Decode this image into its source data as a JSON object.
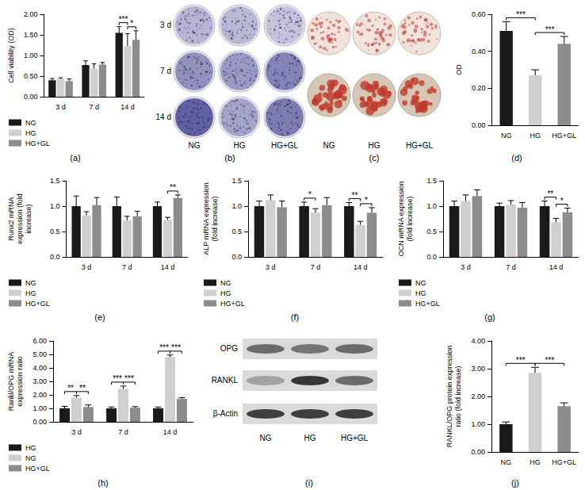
{
  "chart_data": [
    {
      "panel_label": "(a)",
      "type": "bar",
      "ylabel": "Cell viability (OD)",
      "categories": [
        "3 d",
        "7 d",
        "14 d"
      ],
      "series": [
        {
          "name": "NG",
          "color": "#1a1a1a",
          "values": [
            0.4,
            0.77,
            1.55
          ],
          "errors": [
            0.04,
            0.1,
            0.15
          ]
        },
        {
          "name": "HG",
          "color": "#cfcfcf",
          "values": [
            0.43,
            0.68,
            1.23
          ],
          "errors": [
            0.03,
            0.12,
            0.3
          ]
        },
        {
          "name": "HG+GL",
          "color": "#8c8c8c",
          "values": [
            0.38,
            0.78,
            1.38
          ],
          "errors": [
            0.05,
            0.05,
            0.22
          ]
        }
      ],
      "ylim": [
        0,
        2
      ],
      "yticks": [
        {
          "value": 0,
          "label": "0.00"
        },
        {
          "value": 0.5,
          "label": "0.50"
        },
        {
          "value": 1,
          "label": "1.00"
        },
        {
          "value": 1.5,
          "label": "1.50"
        },
        {
          "value": 2,
          "label": "2.00"
        }
      ],
      "grid": false,
      "legend": "bottom-left",
      "significance": [
        {
          "category": "14 d",
          "from": "NG",
          "to": "HG",
          "label": "***"
        },
        {
          "category": "14 d",
          "from": "HG",
          "to": "HG+GL",
          "label": "*"
        }
      ]
    },
    {
      "panel_label": "(d)",
      "type": "bar",
      "ylabel": "OD",
      "categories": [
        "NG",
        "HG",
        "HG+GL"
      ],
      "values": [
        0.51,
        0.27,
        0.44
      ],
      "errors": [
        0.05,
        0.03,
        0.04
      ],
      "colors": [
        "#1a1a1a",
        "#cfcfcf",
        "#8c8c8c"
      ],
      "ylim": [
        0,
        0.6
      ],
      "yticks": [
        {
          "value": 0,
          "label": "0.00"
        },
        {
          "value": 0.2,
          "label": "0.20"
        },
        {
          "value": 0.4,
          "label": "0.40"
        },
        {
          "value": 0.6,
          "label": "0.60"
        }
      ],
      "grid": false,
      "significance": [
        {
          "from": "NG",
          "to": "HG",
          "label": "***"
        },
        {
          "from": "HG",
          "to": "HG+GL",
          "label": "***"
        }
      ]
    },
    {
      "panel_label": "(e)",
      "type": "bar",
      "ylabel": "Runx2 mRNA expression (fold increase)",
      "categories": [
        "3 d",
        "7 d",
        "14 d"
      ],
      "series": [
        {
          "name": "NG",
          "color": "#1a1a1a",
          "values": [
            1.0,
            1.0,
            1.0
          ],
          "errors": [
            0.2,
            0.18,
            0.08
          ]
        },
        {
          "name": "HG",
          "color": "#cfcfcf",
          "values": [
            0.82,
            0.72,
            0.73
          ],
          "errors": [
            0.07,
            0.08,
            0.05
          ]
        },
        {
          "name": "HG+GL",
          "color": "#8c8c8c",
          "values": [
            1.02,
            0.8,
            1.16
          ],
          "errors": [
            0.15,
            0.1,
            0.06
          ]
        }
      ],
      "ylim": [
        0,
        1.5
      ],
      "yticks": [
        {
          "value": 0,
          "label": "0.0"
        },
        0.5,
        {
          "value": 1,
          "label": "1.0"
        },
        1.5
      ],
      "grid": false,
      "legend": "bottom-left",
      "significance": [
        {
          "category": "14 d",
          "from": "HG",
          "to": "HG+GL",
          "label": "**"
        }
      ]
    },
    {
      "panel_label": "(f)",
      "type": "bar",
      "ylabel": "ALP mRNA expression (fold increase)",
      "categories": [
        "3 d",
        "7 d",
        "14 d"
      ],
      "series": [
        {
          "name": "NG",
          "color": "#1a1a1a",
          "values": [
            1.0,
            1.0,
            1.0
          ],
          "errors": [
            0.1,
            0.08,
            0.07
          ]
        },
        {
          "name": "HG",
          "color": "#cfcfcf",
          "values": [
            1.12,
            0.87,
            0.63
          ],
          "errors": [
            0.1,
            0.08,
            0.07
          ]
        },
        {
          "name": "HG+GL",
          "color": "#8c8c8c",
          "values": [
            0.98,
            1.02,
            0.87
          ],
          "errors": [
            0.12,
            0.15,
            0.1
          ]
        }
      ],
      "ylim": [
        0,
        1.5
      ],
      "yticks": [
        {
          "value": 0,
          "label": "0.0"
        },
        0.5,
        {
          "value": 1,
          "label": "1.0"
        },
        1.5
      ],
      "grid": false,
      "legend": "bottom-left",
      "significance": [
        {
          "category": "7 d",
          "from": "NG",
          "to": "HG",
          "label": "*"
        },
        {
          "category": "14 d",
          "from": "NG",
          "to": "HG",
          "label": "**"
        },
        {
          "category": "14 d",
          "from": "HG",
          "to": "HG+GL",
          "label": "*"
        }
      ]
    },
    {
      "panel_label": "(g)",
      "type": "bar",
      "ylabel": "OCN mRNA expression (fold increase)",
      "categories": [
        "3 d",
        "7 d",
        "14 d"
      ],
      "series": [
        {
          "name": "NG",
          "color": "#1a1a1a",
          "values": [
            1.0,
            1.0,
            1.0
          ],
          "errors": [
            0.1,
            0.06,
            0.1
          ]
        },
        {
          "name": "HG",
          "color": "#cfcfcf",
          "values": [
            1.1,
            1.03,
            0.68
          ],
          "errors": [
            0.12,
            0.08,
            0.08
          ]
        },
        {
          "name": "HG+GL",
          "color": "#8c8c8c",
          "values": [
            1.2,
            0.97,
            0.88
          ],
          "errors": [
            0.12,
            0.1,
            0.08
          ]
        }
      ],
      "ylim": [
        0,
        1.5
      ],
      "yticks": [
        {
          "value": 0,
          "label": "0.0"
        },
        0.5,
        {
          "value": 1,
          "label": "1.0"
        },
        1.5
      ],
      "grid": false,
      "legend": "bottom-left",
      "significance": [
        {
          "category": "14 d",
          "from": "NG",
          "to": "HG",
          "label": "**"
        },
        {
          "category": "14 d",
          "from": "HG",
          "to": "HG+GL",
          "label": "*"
        }
      ]
    },
    {
      "panel_label": "(h)",
      "type": "bar",
      "ylabel": "Rankl/OPG mRNA expression ratio",
      "categories": [
        "3 d",
        "7 d",
        "14 d"
      ],
      "series": [
        {
          "name": "HG",
          "color": "#1a1a1a",
          "values": [
            1.0,
            1.0,
            1.0
          ],
          "errors": [
            0.15,
            0.1,
            0.1
          ]
        },
        {
          "name": "NG",
          "color": "#cfcfcf",
          "values": [
            1.8,
            2.45,
            4.8
          ],
          "errors": [
            0.15,
            0.2,
            0.15
          ]
        },
        {
          "name": "HG+GL",
          "color": "#8c8c8c",
          "values": [
            1.1,
            1.05,
            1.7
          ],
          "errors": [
            0.15,
            0.08,
            0.1
          ]
        }
      ],
      "ylim": [
        0,
        6
      ],
      "yticks": [
        {
          "value": 0,
          "label": "0.00"
        },
        {
          "value": 1,
          "label": "1.00"
        },
        {
          "value": 2,
          "label": "2.00"
        },
        {
          "value": 3,
          "label": "3.00"
        },
        {
          "value": 4,
          "label": "4.00"
        },
        {
          "value": 5,
          "label": "5.00"
        },
        {
          "value": 6,
          "label": "6.00"
        }
      ],
      "grid": false,
      "legend": "bottom-left",
      "significance": [
        {
          "category": "3 d",
          "from": "HG",
          "to": "NG",
          "label": "**"
        },
        {
          "category": "3 d",
          "from": "NG",
          "to": "HG+GL",
          "label": "**"
        },
        {
          "category": "7 d",
          "from": "HG",
          "to": "NG",
          "label": "***"
        },
        {
          "category": "7 d",
          "from": "NG",
          "to": "HG+GL",
          "label": "***"
        },
        {
          "category": "14 d",
          "from": "HG",
          "to": "NG",
          "label": "***"
        },
        {
          "category": "14 d",
          "from": "NG",
          "to": "HG+GL",
          "label": "***"
        }
      ]
    },
    {
      "panel_label": "(j)",
      "type": "bar",
      "ylabel": "RANKL/OPG protein expression ratio (fold increase)",
      "categories": [
        "NG",
        "HG",
        "HG+GL"
      ],
      "values": [
        1.0,
        2.85,
        1.65
      ],
      "errors": [
        0.08,
        0.2,
        0.12
      ],
      "colors": [
        "#1a1a1a",
        "#cfcfcf",
        "#8c8c8c"
      ],
      "ylim": [
        0,
        4
      ],
      "yticks": [
        {
          "value": 0,
          "label": "0.00"
        },
        {
          "value": 1,
          "label": "1.00"
        },
        {
          "value": 2,
          "label": "2.00"
        },
        {
          "value": 3,
          "label": "3.00"
        },
        {
          "value": 4,
          "label": "4.00"
        }
      ],
      "grid": false,
      "significance": [
        {
          "from": "NG",
          "to": "HG",
          "label": "***"
        },
        {
          "from": "HG",
          "to": "HG+GL",
          "label": "***"
        }
      ]
    }
  ],
  "images": [
    {
      "panel_label": "(b)",
      "type": "wells",
      "color": "#3a3a8c",
      "rows": [
        "3 d",
        "7 d",
        "14 d"
      ],
      "columns": [
        "NG",
        "HG",
        "HG+GL"
      ]
    },
    {
      "panel_label": "(c)",
      "type": "wells",
      "color": "#c0392b",
      "columns": [
        "NG",
        "HG",
        "HG+GL"
      ]
    },
    {
      "panel_label": "(i)",
      "type": "blot",
      "rows": [
        "OPG",
        "RANKL",
        "β-Actin"
      ],
      "columns": [
        "NG",
        "HG",
        "HG+GL"
      ]
    }
  ]
}
